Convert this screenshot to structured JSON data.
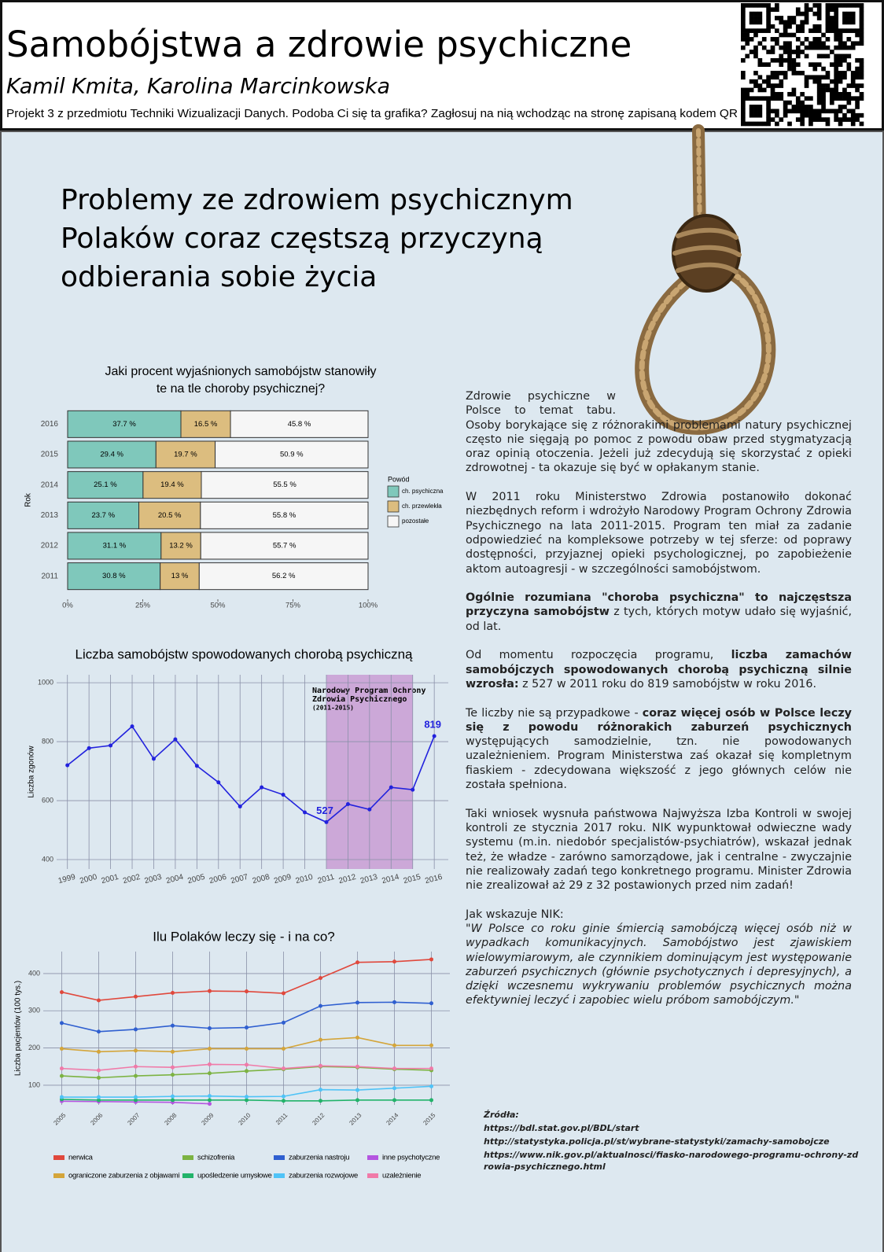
{
  "header": {
    "title": "Samobójstwa a zdrowie psychiczne",
    "authors": "Kamil Kmita, Karolina Marcinkowska",
    "subtitle": "Projekt 3 z przedmiotu Techniki Wizualizacji Danych. Podoba Ci się ta grafika? Zagłosuj na nią wchodząc na stronę zapisaną kodem QR"
  },
  "headline": [
    "Problemy ze zdrowiem psychicznym",
    "Polaków coraz częstszą przyczyną",
    "odbierania sobie życia"
  ],
  "article": {
    "paragraphs": [
      [
        {
          "text": "Zdrowie psychiczne w Polsce  to temat tabu. Osoby borykające się z różnorakimi problemami natury psychicznej często nie sięgają po pomoc z powodu obaw przed stygmatyzacją oraz opinią otoczenia. Jeżeli już zdecydują się skorzystać z opieki zdrowotnej - ta okazuje się być w opłakanym stanie."
        }
      ],
      [
        {
          "text": "W 2011 roku Ministerstwo Zdrowia postanowiło dokonać niezbędnych reform i wdrożyło Narodowy Program Ochrony Zdrowia Psychicznego na lata 2011-2015. Program ten miał za zadanie odpowiedzieć na kompleksowe potrzeby w tej sferze: od poprawy dostępności, przyjaznej opieki psychologicznej, po zapobieżenie aktom autoagresji - w szczególności samobójstwom."
        }
      ],
      [
        {
          "text": "Ogólnie rozumiana \"choroba psychiczna\" to najczęstsza przyczyna samobójstw",
          "bold": true
        },
        {
          "text": " z tych, których motyw udało się wyjaśnić, od lat."
        }
      ],
      [
        {
          "text": "Od momentu rozpoczęcia programu, "
        },
        {
          "text": "liczba zamachów samobójczych spowodowanych chorobą psychiczną silnie wzrosła:",
          "bold": true
        },
        {
          "text": " z 527 w 2011 roku do 819 samobójstw w roku 2016."
        }
      ],
      [
        {
          "text": "Te liczby nie są przypadkowe - "
        },
        {
          "text": "coraz więcej osób w Polsce leczy się z powodu różnorakich zaburzeń psychicznych",
          "bold": true
        },
        {
          "text": " występujących samodzielnie, tzn. nie powodowanych uzależnieniem. Program Ministerstwa zaś okazał się kompletnym fiaskiem - zdecydowana większość z jego głównych celów nie została spełniona."
        }
      ],
      [
        {
          "text": "Taki wniosek wysnuła państwowa Najwyższa Izba Kontroli w swojej kontroli ze stycznia 2017 roku. NIK wypunktował odwieczne wady systemu (m.in. niedobór specjalistów-psychiatrów), wskazał jednak też, że władze - zarówno samorządowe, jak i centralne - zwyczajnie nie realizowały zadań tego konkretnego programu. Minister Zdrowia nie zrealizował aż 29 z 32 postawionych przed nim zadań!"
        }
      ]
    ],
    "quote_intro": "Jak wskazuje NIK:",
    "quote": "\"W Polsce co roku ginie śmiercią samobójczą więcej osób niż w wypadkach komunikacyjnych. Samobójstwo jest zjawiskiem wielowymiarowym, ale czynnikiem dominującym jest występowanie zaburzeń psychicznych (głównie psychotycznych i depresyjnych), a dzięki wczesnemu wykrywaniu problemów psychicznych można efektywniej leczyć i zapobiec wielu próbom samobójczym.\""
  },
  "sources": {
    "title": "Źródła:",
    "links": [
      "https://bdl.stat.gov.pl/BDL/start",
      "http://statystyka.policja.pl/st/wybrane-statystyki/zamachy-samobojcze",
      "https://www.nik.gov.pl/aktualnosci/fiasko-narodowego-programu-ochrony-zdrowia-psychicznego.html"
    ]
  },
  "chart_data": [
    {
      "type": "bar",
      "stacked": true,
      "orientation": "horizontal",
      "title": [
        "Jaki procent wyjaśnionych samobójstw stanowiły",
        "te na tle choroby psychicznej?"
      ],
      "y_label": "Rok",
      "legend_title": "Powód",
      "categories": [
        "2016",
        "2015",
        "2014",
        "2013",
        "2012",
        "2011"
      ],
      "series": [
        {
          "name": "ch. psychiczna",
          "color": "#7fc8bb",
          "values": [
            37.7,
            29.4,
            25.1,
            23.7,
            31.1,
            30.8
          ],
          "value_labels": [
            "37.7 %",
            "29.4 %",
            "25.1 %",
            "23.7 %",
            "31.1 %",
            "30.8 %"
          ]
        },
        {
          "name": "ch. przewlekła",
          "color": "#dcbd7f",
          "values": [
            16.5,
            19.7,
            19.4,
            20.5,
            13.2,
            13
          ],
          "value_labels": [
            "16.5 %",
            "19.7 %",
            "19.4 %",
            "20.5 %",
            "13.2 %",
            "13 %"
          ]
        },
        {
          "name": "pozostałe",
          "color": "#f6f6f6",
          "values": [
            45.8,
            50.9,
            55.5,
            55.8,
            55.7,
            56.2
          ],
          "value_labels": [
            "45.8 %",
            "50.9 %",
            "55.5 %",
            "55.8 %",
            "55.7 %",
            "56.2 %"
          ]
        }
      ],
      "xlim": [
        0,
        100
      ],
      "xticks": [
        {
          "value": 0,
          "label": "0%"
        },
        {
          "value": 25,
          "label": "25%"
        },
        {
          "value": 50,
          "label": "50%"
        },
        {
          "value": 75,
          "label": "75%"
        },
        {
          "value": 100,
          "label": "100%"
        }
      ]
    },
    {
      "type": "line",
      "title": "Liczba samobójstw spowodowanych chorobą psychiczną",
      "y_label": "Liczba zgonów",
      "color": "#2222dd",
      "x": [
        1999,
        2000,
        2001,
        2002,
        2003,
        2004,
        2005,
        2006,
        2007,
        2008,
        2009,
        2010,
        2011,
        2012,
        2013,
        2014,
        2015,
        2016
      ],
      "values": [
        720,
        778,
        787,
        852,
        742,
        808,
        718,
        662,
        580,
        645,
        620,
        560,
        527,
        588,
        570,
        645,
        637,
        819
      ],
      "value_labels": [
        null,
        null,
        null,
        null,
        null,
        null,
        null,
        null,
        null,
        null,
        null,
        null,
        "527",
        null,
        null,
        null,
        null,
        "819"
      ],
      "highlight": {
        "from": 2011,
        "to": 2015,
        "color": "#cca8d8",
        "label": [
          "Narodowy Program Ochrony",
          "Zdrowia Psychicznego",
          "(2011-2015)"
        ]
      },
      "xlim": [
        1998.5,
        2016.65
      ],
      "ylim": [
        368,
        1027
      ],
      "yticks": [
        400,
        600,
        800,
        1000
      ],
      "grid": true
    },
    {
      "type": "line",
      "title": "Ilu Polaków leczy się - i na co?",
      "y_label": "Liczba pacjentów (100 tys.)",
      "x": [
        2005,
        2006,
        2007,
        2008,
        2009,
        2010,
        2011,
        2012,
        2013,
        2014,
        2015
      ],
      "series": [
        {
          "name": "nerwica",
          "color": "#e0483c",
          "values": [
            350,
            328,
            338,
            348,
            353,
            352,
            347,
            388,
            430,
            432,
            438
          ]
        },
        {
          "name": "schizofrenia",
          "color": "#7cb342",
          "values": [
            125,
            120,
            125,
            128,
            132,
            138,
            143,
            150,
            148,
            143,
            140
          ]
        },
        {
          "name": "zaburzenia nastroju",
          "color": "#2f5fd0",
          "values": [
            267,
            244,
            250,
            260,
            253,
            255,
            268,
            313,
            322,
            323,
            320
          ]
        },
        {
          "name": "inne psychotyczne",
          "color": "#b455e0",
          "values": [
            57,
            56,
            55,
            54,
            50,
            null,
            null,
            null,
            null,
            null,
            null
          ]
        },
        {
          "name": "ograniczone zaburzenia z objawami",
          "color": "#d4a53a",
          "values": [
            198,
            190,
            193,
            190,
            198,
            198,
            198,
            222,
            228,
            207,
            207
          ]
        },
        {
          "name": "upośledzenie umysłowe",
          "color": "#22b36a",
          "values": [
            62,
            60,
            60,
            60,
            60,
            60,
            58,
            58,
            60,
            60,
            60
          ]
        },
        {
          "name": "zaburzenia rozwojowe",
          "color": "#4fc3f7",
          "values": [
            68,
            68,
            68,
            70,
            71,
            69,
            70,
            88,
            87,
            92,
            97
          ]
        },
        {
          "name": "uzależnienie",
          "color": "#f07aa8",
          "values": [
            145,
            140,
            150,
            148,
            156,
            155,
            145,
            152,
            150,
            145,
            145
          ]
        }
      ],
      "xlim": [
        2004.5,
        2015.5
      ],
      "ylim": [
        47,
        459
      ],
      "yticks": [
        100,
        200,
        300,
        400
      ],
      "grid": true
    }
  ]
}
